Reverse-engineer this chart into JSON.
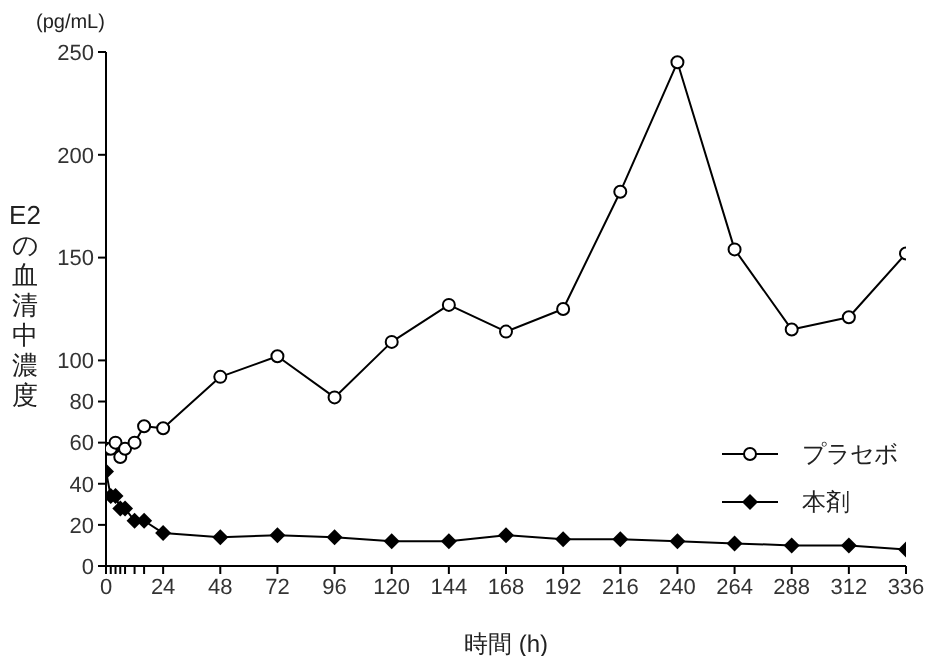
{
  "chart_data": {
    "type": "line",
    "xlabel": "時間 (h)",
    "ylabel": "E2の血清中濃度",
    "annotations": [
      "(pg/mL)"
    ],
    "xlim": [
      0,
      336
    ],
    "xticks": [
      0,
      {
        "value": 2,
        "label": null
      },
      {
        "value": 4,
        "label": null
      },
      {
        "value": 6,
        "label": null
      },
      {
        "value": 8,
        "label": null
      },
      {
        "value": 12,
        "label": null
      },
      {
        "value": 16,
        "label": null
      },
      24,
      48,
      72,
      96,
      120,
      144,
      168,
      192,
      216,
      240,
      264,
      288,
      312,
      336
    ],
    "ylim": [
      0,
      250
    ],
    "yticks": [
      0,
      20,
      40,
      60,
      80,
      100,
      150,
      200,
      250
    ],
    "grid": false,
    "legend": "right",
    "line_style": "solid",
    "x": [
      0,
      2,
      4,
      6,
      8,
      12,
      16,
      24,
      48,
      72,
      96,
      120,
      144,
      168,
      192,
      216,
      240,
      264,
      288,
      312,
      336
    ],
    "series": [
      {
        "name": "プラセボ",
        "color": "#000000",
        "marker": "circle",
        "values": [
          57,
          57,
          60,
          53,
          57,
          60,
          68,
          67,
          92,
          102,
          82,
          109,
          127,
          114,
          125,
          182,
          245,
          154,
          115,
          121,
          152
        ]
      },
      {
        "name": "本剤",
        "color": "#000000",
        "marker": "diamond",
        "values": [
          46,
          34,
          34,
          28,
          28,
          22,
          22,
          16,
          14,
          15,
          14,
          12,
          12,
          15,
          13,
          13,
          12,
          11,
          10,
          10,
          8
        ]
      }
    ]
  }
}
